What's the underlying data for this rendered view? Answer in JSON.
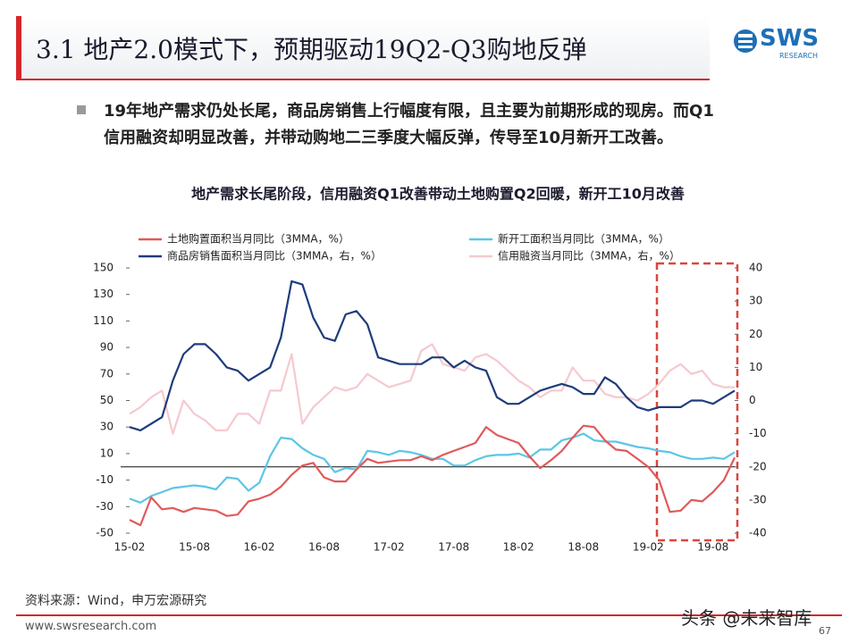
{
  "header": {
    "title": "3.1 地产2.0模式下，预期驱动19Q2-Q3购地反弹",
    "logo": "SWS",
    "logo_sub": "RESEARCH"
  },
  "bullet": [
    "19年地产需求仍处长尾，商品房销售上行幅度有限，且主要为前期形成的现房。而Q1",
    "信用融资却明显改善，并带动购地二三季度大幅反弹，传导至10月新开工改善。"
  ],
  "chart_data": {
    "type": "line",
    "title": "地产需求长尾阶段，信用融资Q1改善带动土地购置Q2回暖，新开工10月改善",
    "categories": [
      "15-02",
      null,
      null,
      null,
      null,
      null,
      "15-08",
      null,
      null,
      null,
      null,
      null,
      "16-02",
      null,
      null,
      null,
      null,
      null,
      "16-08",
      null,
      null,
      null,
      null,
      null,
      "17-02",
      null,
      null,
      null,
      null,
      null,
      "17-08",
      null,
      null,
      null,
      null,
      null,
      "18-02",
      null,
      null,
      null,
      null,
      null,
      "18-08",
      null,
      null,
      null,
      null,
      null,
      "19-02",
      null,
      null,
      null,
      null,
      null,
      "19-08",
      null,
      null
    ],
    "series": [
      {
        "name": "土地购置面积当月同比（3MMA，%）",
        "color": "#e05a5a",
        "values": [
          -40,
          -44,
          -23,
          -32,
          -31,
          -34,
          -31,
          -32,
          -33,
          -37,
          -36,
          -26,
          -24,
          -21,
          -15,
          -6,
          1,
          3,
          -8,
          -11,
          -11,
          -2,
          6,
          3,
          4,
          5,
          5,
          8,
          5,
          9,
          12,
          15,
          18,
          30,
          24,
          21,
          18,
          8,
          -1,
          5,
          12,
          22,
          31,
          30,
          20,
          13,
          12,
          6,
          0,
          -10,
          -34,
          -33,
          -25,
          -26,
          -19,
          -10,
          7
        ]
      },
      {
        "name": "新开工面积当月同比（3MMA，%）",
        "color": "#5cc6e6",
        "values": [
          -24,
          -27,
          -22,
          -19,
          -16,
          -15,
          -14,
          -15,
          -17,
          -8,
          -9,
          -18,
          -12,
          8,
          22,
          21,
          14,
          9,
          6,
          -4,
          -1,
          -2,
          12,
          11,
          9,
          12,
          11,
          9,
          6,
          6,
          1,
          1,
          5,
          8,
          9,
          9,
          10,
          7,
          13,
          13,
          20,
          22,
          25,
          20,
          19,
          19,
          17,
          15,
          14,
          12,
          11,
          8,
          6,
          6,
          7,
          6,
          11
        ]
      },
      {
        "name": "商品房销售面积当月同比（3MMA，右，%）",
        "color": "#1f3c7c",
        "axis": "y2",
        "values": [
          -8,
          -9,
          -7,
          -5,
          6,
          14,
          17,
          17,
          14,
          10,
          9,
          6,
          8,
          10,
          19,
          36,
          35,
          25,
          19,
          18,
          26,
          27,
          23,
          13,
          12,
          11,
          11,
          11,
          13,
          13,
          10,
          12,
          10,
          9,
          1,
          -1,
          -1,
          1,
          3,
          4,
          5,
          4,
          2,
          2,
          7,
          5,
          1,
          -2,
          -3,
          -2,
          -2,
          -2,
          0,
          0,
          -1,
          1,
          3
        ]
      },
      {
        "name": "信用融资当月同比（3MMA，右，%）",
        "color": "#f5c9cf",
        "axis": "y2",
        "values": [
          -4,
          -2,
          1,
          3,
          -10,
          0,
          -4,
          -6,
          -9,
          -9,
          -4,
          -4,
          -7,
          3,
          3,
          14,
          -7,
          -2,
          1,
          4,
          3,
          4,
          8,
          6,
          4,
          5,
          6,
          15,
          17,
          11,
          10,
          9,
          13,
          14,
          12,
          9,
          6,
          4,
          1,
          3,
          3,
          10,
          6,
          6,
          2,
          1,
          1,
          0,
          2,
          5,
          9,
          11,
          8,
          9,
          5,
          4,
          4
        ]
      }
    ],
    "ylim": [
      -50,
      150
    ],
    "yticks": [
      -50,
      -30,
      -10,
      10,
      30,
      50,
      70,
      90,
      110,
      130,
      150
    ],
    "y2lim": [
      -40,
      40
    ],
    "y2ticks": [
      -40,
      -30,
      -20,
      -10,
      0,
      10,
      20,
      30,
      40
    ],
    "legend": "top",
    "grid": false
  },
  "footer": {
    "source": "资料来源：Wind，申万宏源研究",
    "website": "www.swsresearch.com",
    "page": "67",
    "watermark": "头条 @未来智库"
  }
}
